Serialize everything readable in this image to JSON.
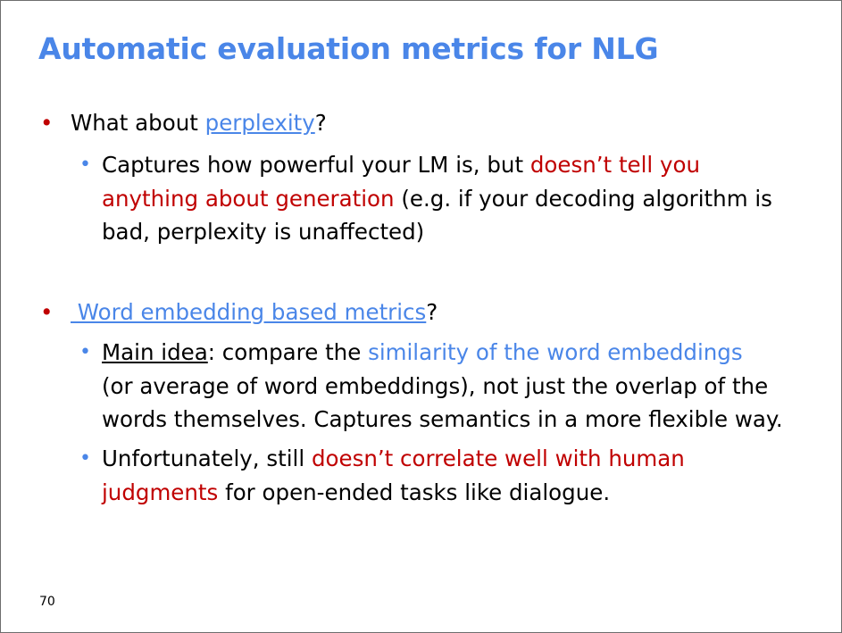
{
  "slide": {
    "title": "Automatic evaluation metrics for NLG",
    "page_number": "70",
    "bullets": [
      {
        "prefix": "What about ",
        "link": "perplexity",
        "suffix": "?",
        "sub": [
          {
            "l1_a": "Captures how powerful your LM is, but ",
            "l1_b": "doesn’t tell you",
            "l2_a": "anything about generation",
            "l2_b": " (e.g. if your decoding algorithm is",
            "l3": "bad, perplexity is unaffected)"
          }
        ]
      },
      {
        "prefix": "",
        "link": " Word embedding based metrics",
        "suffix": "?",
        "sub": [
          {
            "l1_a": "Main idea",
            "l1_b": ": compare the ",
            "l1_c": "similarity of the word embeddings",
            "l2": "(or average of word embeddings), not just the overlap of the",
            "l3": "words themselves. Captures semantics in a more flexible way."
          },
          {
            "l1_a": "Unfortunately, still ",
            "l1_b": "doesn’t correlate well with human",
            "l2_a": "judgments",
            "l2_b": " for open-ended tasks like dialogue."
          }
        ]
      }
    ]
  },
  "colors": {
    "title": "#4a86e8",
    "accent_red": "#c00000",
    "accent_blue": "#4a86e8",
    "text": "#000000"
  },
  "icons": {
    "level1_bullet": "red-dot-bullet-icon",
    "level2_bullet": "blue-dot-bullet-icon"
  }
}
